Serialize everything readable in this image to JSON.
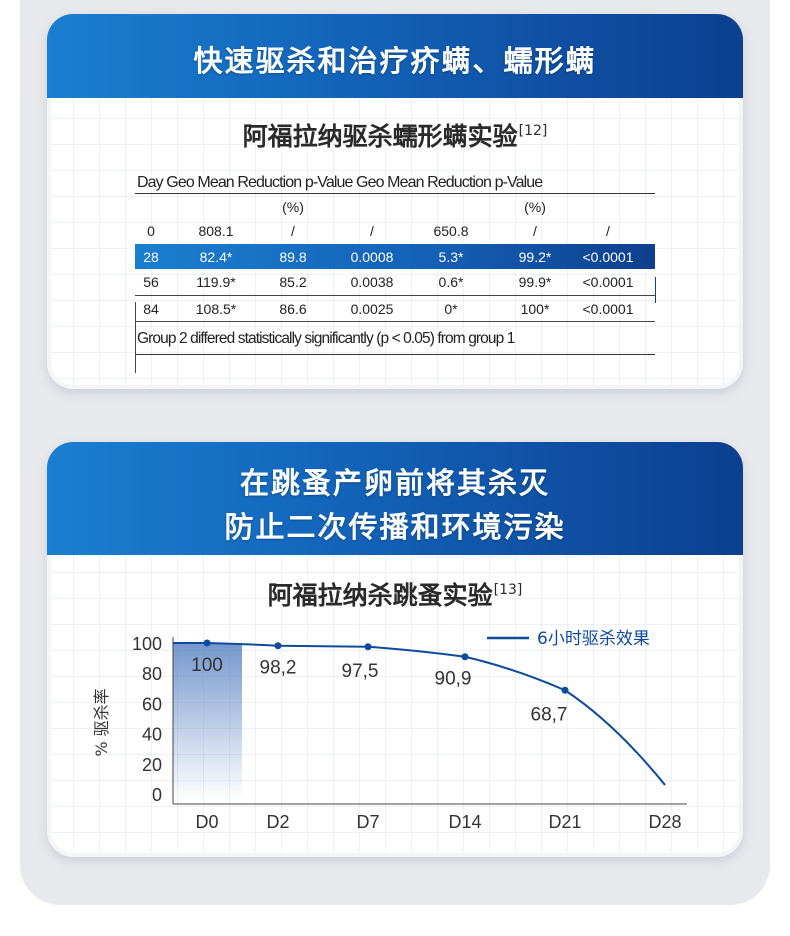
{
  "section1": {
    "header": "快速驱杀和治疗疥螨、蠕形螨",
    "subtitle": "阿福拉纳驱杀蠕形螨实验",
    "subtitle_ref": "[12]",
    "table": {
      "header_text": "Day Geo Mean Reduction p-Value Geo Mean Reduction p-Value",
      "pct_label_1": "(%)",
      "pct_label_2": "(%)",
      "rows": [
        {
          "day": "0",
          "geo1": "808.1",
          "red1": "/",
          "p1": "/",
          "geo2": "650.8",
          "red2": "/",
          "p2": "/"
        },
        {
          "day": "28",
          "geo1": "82.4*",
          "red1": "89.8",
          "p1": "0.0008",
          "geo2": "5.3*",
          "red2": "99.2*",
          "p2": "<0.0001"
        },
        {
          "day": "56",
          "geo1": "119.9*",
          "red1": "85.2",
          "p1": "0.0038",
          "geo2": "0.6*",
          "red2": "99.9*",
          "p2": "<0.0001"
        },
        {
          "day": "84",
          "geo1": "108.5*",
          "red1": "86.6",
          "p1": "0.0025",
          "geo2": "0*",
          "red2": "100*",
          "p2": "<0.0001"
        }
      ],
      "footer": "Group 2 differed statistically significantly (p < 0.05) from group 1"
    }
  },
  "section2": {
    "header_line1": "在跳蚤产卵前将其杀灭",
    "header_line2": "防止二次传播和环境污染",
    "subtitle": "阿福拉纳杀跳蚤实验",
    "subtitle_ref": "[13]"
  },
  "colors": {
    "brand_blue": "#1262b8",
    "brand_dark": "#0c3f8f",
    "line": "#0f4a9c"
  },
  "chart_data": {
    "type": "line",
    "ylabel": "% 驱杀率",
    "x": [
      "D0",
      "D2",
      "D7",
      "D14",
      "D21",
      "D28"
    ],
    "yticks": [
      "100",
      "80",
      "60",
      "40",
      "20",
      "0"
    ],
    "ylim": [
      0,
      100
    ],
    "series": [
      {
        "name": "6小时驱杀效果",
        "points": [
          {
            "x": "D0",
            "y": 100,
            "label": "100"
          },
          {
            "x": "D2",
            "y": 98.2,
            "label": "98,2"
          },
          {
            "x": "D7",
            "y": 97.5,
            "label": "97,5"
          },
          {
            "x": "D14",
            "y": 90.9,
            "label": "90,9"
          },
          {
            "x": "D21",
            "y": 68.7,
            "label": "68,7"
          }
        ]
      }
    ],
    "legend": "top-right",
    "grid": false
  }
}
